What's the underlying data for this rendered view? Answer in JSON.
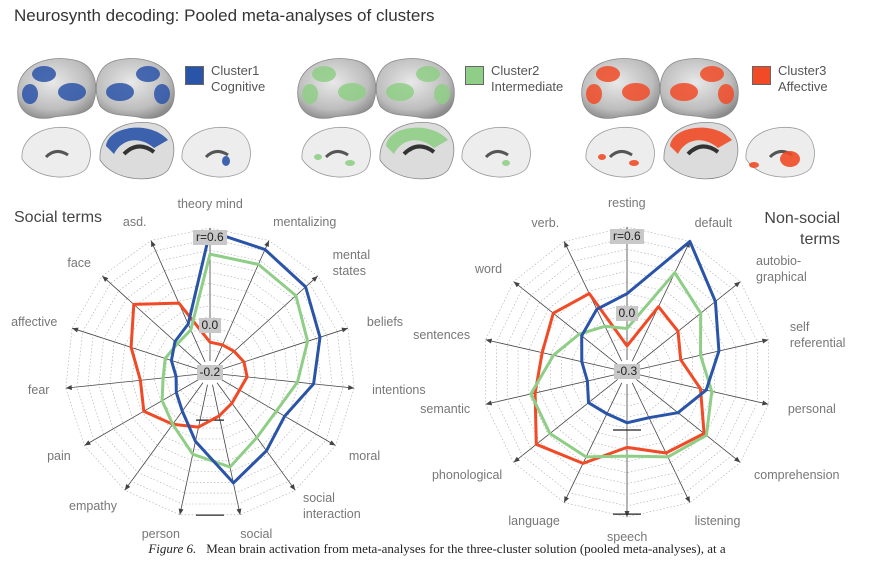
{
  "header": {
    "title": "Neurosynth decoding: Pooled meta-analyses of clusters"
  },
  "legend": [
    {
      "line1": "Cluster1",
      "line2": "Cognitive",
      "color": "#2a54a8"
    },
    {
      "line1": "Cluster2",
      "line2": "Intermediate",
      "color": "#8fce86"
    },
    {
      "line1": "Cluster3",
      "line2": "Affective",
      "color": "#f04a26"
    }
  ],
  "icons": [
    "brain-lateral-icon",
    "brain-medial-icon",
    "brain-axial-icon"
  ],
  "chart_data": [
    {
      "type": "radar",
      "title": "Social terms",
      "labels": [
        "theory mind",
        "mentalizing",
        "mental states",
        "beliefs",
        "intentions",
        "moral",
        "social interaction",
        "social",
        "person",
        "empathy",
        "pain",
        "fear",
        "affective",
        "face",
        "asd."
      ],
      "range_labels": [
        "r=0.6",
        "0.0",
        "-0.2"
      ],
      "rlim": [
        -0.2,
        0.6
      ],
      "series": [
        {
          "color": "#2a54a8",
          "values": [
            0.58,
            0.54,
            0.5,
            0.42,
            0.35,
            0.24,
            0.3,
            0.4,
            0.14,
            0.0,
            -0.05,
            -0.08,
            -0.04,
            0.0,
            0.04
          ]
        },
        {
          "color": "#8fce86",
          "values": [
            0.44,
            0.44,
            0.42,
            0.34,
            0.25,
            0.18,
            0.2,
            0.3,
            0.22,
            0.1,
            0.05,
            0.0,
            0.0,
            -0.02,
            0.0
          ]
        },
        {
          "color": "#f04a26",
          "values": [
            -0.1,
            -0.1,
            -0.09,
            -0.07,
            -0.06,
            -0.08,
            -0.06,
            -0.02,
            0.05,
            0.1,
            0.18,
            0.14,
            0.22,
            0.34,
            0.18
          ]
        }
      ]
    },
    {
      "type": "radar",
      "title": "Non-social terms",
      "labels": [
        "resting",
        "default",
        "autobio-graphical",
        "self referential",
        "personal",
        "comprehension",
        "listening",
        "speech",
        "language",
        "phonological",
        "semantic",
        "sentences",
        "word",
        "verb."
      ],
      "range_labels": [
        "r=0.6",
        "0.0",
        "-0.3"
      ],
      "rlim": [
        -0.3,
        0.6
      ],
      "series": [
        {
          "color": "#2a54a8",
          "values": [
            0.14,
            0.6,
            0.38,
            0.25,
            0.16,
            0.05,
            -0.05,
            -0.05,
            -0.08,
            -0.06,
            -0.12,
            -0.08,
            0.0,
            0.08
          ]
        },
        {
          "color": "#8fce86",
          "values": [
            -0.1,
            0.36,
            0.25,
            0.12,
            0.2,
            0.3,
            0.25,
            0.18,
            0.25,
            0.28,
            0.28,
            0.12,
            0.02,
            -0.05
          ]
        },
        {
          "color": "#f04a26",
          "values": [
            -0.22,
            0.1,
            0.05,
            -0.02,
            0.12,
            0.28,
            0.22,
            0.12,
            0.3,
            0.4,
            0.25,
            0.2,
            0.25,
            0.2
          ]
        }
      ]
    }
  ],
  "caption": {
    "label": "Figure 6.",
    "text": "Mean brain activation from meta-analyses for the three-cluster solution (pooled meta-analyses), at a"
  }
}
